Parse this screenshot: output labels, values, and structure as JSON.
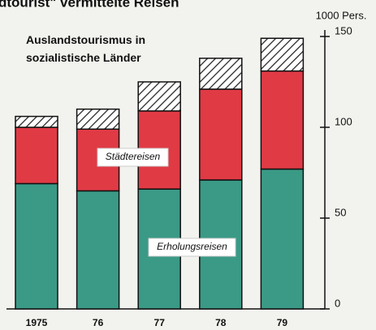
{
  "chart_data": {
    "type": "stacked_bar",
    "title": "dtourist\" vermittelte Reisen",
    "subtitle": "Auslandstourismus in sozialistische Länder",
    "y_axis_label": "1000 Pers.",
    "categories": [
      "1975",
      "76",
      "77",
      "78",
      "79"
    ],
    "series": [
      {
        "name": "Erholungsreisen",
        "color": "#3a9a86",
        "values": [
          69,
          65,
          66,
          71,
          77
        ]
      },
      {
        "name": "Städtereisen",
        "color": "#e03a45",
        "values": [
          31,
          34,
          43,
          50,
          54
        ]
      },
      {
        "color": "hatch",
        "values": [
          6,
          11,
          16,
          17,
          18
        ]
      }
    ],
    "ylim": [
      0,
      150
    ],
    "yticks": [
      0,
      50,
      100,
      150
    ]
  }
}
